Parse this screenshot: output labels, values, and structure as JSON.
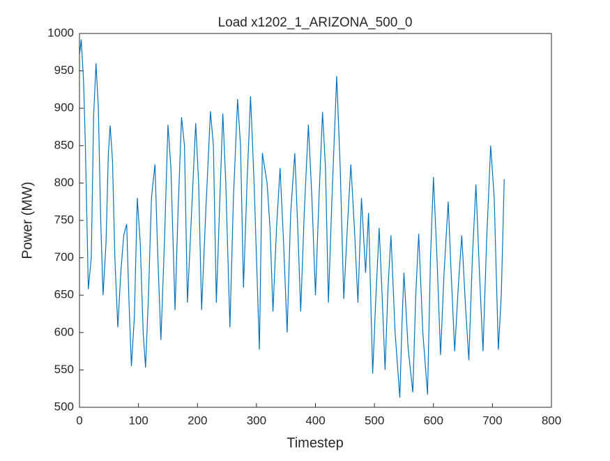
{
  "chart_data": {
    "type": "line",
    "title": "Load x1202_1_ARIZONA_500_0",
    "xlabel": "Timestep",
    "ylabel": "Power (MW)",
    "x": [
      0,
      3,
      7,
      10,
      15,
      20,
      24,
      28,
      32,
      36,
      40,
      45,
      49,
      52,
      56,
      60,
      65,
      70,
      75,
      80,
      84,
      88,
      93,
      98,
      103,
      108,
      112,
      117,
      122,
      128,
      132,
      138,
      144,
      150,
      155,
      162,
      167,
      173,
      178,
      183,
      190,
      197,
      202,
      207,
      214,
      222,
      227,
      232,
      238,
      243,
      248,
      255,
      261,
      268,
      273,
      278,
      284,
      290,
      296,
      305,
      310,
      318,
      323,
      328,
      334,
      340,
      346,
      352,
      358,
      365,
      370,
      375,
      381,
      388,
      394,
      400,
      406,
      412,
      417,
      422,
      428,
      436,
      442,
      448,
      454,
      460,
      466,
      472,
      478,
      485,
      490,
      497,
      502,
      508,
      513,
      518,
      523,
      528,
      535,
      543,
      547,
      550,
      557,
      565,
      570,
      575,
      582,
      590,
      595,
      600,
      606,
      612,
      618,
      625,
      630,
      636,
      642,
      648,
      654,
      660,
      666,
      672,
      678,
      684,
      690,
      697,
      703,
      710,
      715,
      720
    ],
    "series": [
      {
        "name": "Load",
        "color": "#0072bd",
        "values": [
          970,
          992,
          935,
          850,
          658,
          700,
          890,
          960,
          900,
          750,
          650,
          720,
          840,
          877,
          830,
          700,
          607,
          680,
          730,
          745,
          640,
          555,
          620,
          780,
          720,
          600,
          553,
          650,
          780,
          825,
          720,
          590,
          720,
          878,
          820,
          630,
          760,
          888,
          850,
          640,
          760,
          880,
          800,
          630,
          760,
          896,
          850,
          640,
          780,
          893,
          800,
          607,
          780,
          912,
          850,
          660,
          800,
          916,
          800,
          577,
          840,
          800,
          740,
          628,
          740,
          820,
          720,
          600,
          760,
          840,
          740,
          628,
          760,
          878,
          780,
          650,
          780,
          895,
          820,
          640,
          780,
          943,
          820,
          645,
          740,
          825,
          740,
          640,
          780,
          680,
          760,
          545,
          640,
          740,
          650,
          550,
          660,
          730,
          600,
          513,
          620,
          680,
          580,
          520,
          650,
          732,
          600,
          517,
          700,
          808,
          700,
          570,
          680,
          775,
          680,
          575,
          660,
          730,
          640,
          563,
          700,
          798,
          680,
          575,
          720,
          850,
          780,
          577,
          650,
          805
        ]
      }
    ],
    "xlim": [
      0,
      800
    ],
    "xticks": [
      0,
      100,
      200,
      300,
      400,
      500,
      600,
      700,
      800
    ],
    "ylim": [
      500,
      1000
    ],
    "yticks": [
      500,
      550,
      600,
      650,
      700,
      750,
      800,
      850,
      900,
      950,
      1000
    ]
  }
}
